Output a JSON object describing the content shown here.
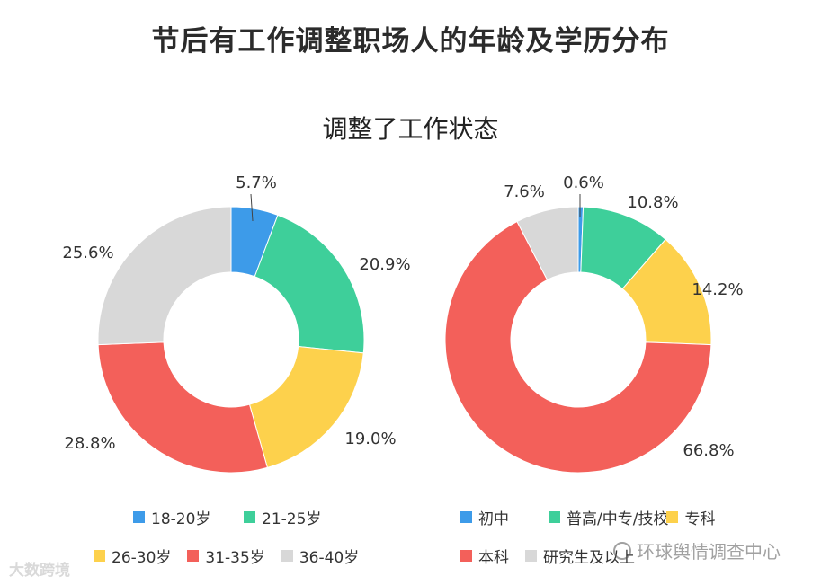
{
  "title": "节后有工作调整职场人的年龄及学历分布",
  "subtitle": "调整了工作状态",
  "chart_data": [
    {
      "type": "pie",
      "name": "age",
      "categories": [
        "18-20岁",
        "21-25岁",
        "26-30岁",
        "31-35岁",
        "36-40岁"
      ],
      "values": [
        5.7,
        20.9,
        19.0,
        28.8,
        25.6
      ],
      "labels": [
        "5.7%",
        "20.9%",
        "19.0%",
        "28.8%",
        "25.6%"
      ],
      "colors": [
        "#3d9be9",
        "#3ecf9a",
        "#fdd14c",
        "#f3605a",
        "#d8d8d8"
      ],
      "legend": "bottom"
    },
    {
      "type": "pie",
      "name": "education",
      "categories": [
        "初中",
        "普高/中专/技校",
        "专科",
        "本科",
        "研究生及以上"
      ],
      "values": [
        0.6,
        10.8,
        14.2,
        66.8,
        7.6
      ],
      "labels": [
        "0.6%",
        "10.8%",
        "14.2%",
        "66.8%",
        "7.6%"
      ],
      "colors": [
        "#3d9be9",
        "#3ecf9a",
        "#fdd14c",
        "#f3605a",
        "#d8d8d8"
      ],
      "legend": "bottom"
    }
  ],
  "legend_left": [
    {
      "label": "18-20岁",
      "color": "#3d9be9"
    },
    {
      "label": "21-25岁",
      "color": "#3ecf9a"
    },
    {
      "label": "26-30岁",
      "color": "#fdd14c"
    },
    {
      "label": "31-35岁",
      "color": "#f3605a"
    },
    {
      "label": "36-40岁",
      "color": "#d8d8d8"
    }
  ],
  "legend_right": [
    {
      "label": "初中",
      "color": "#3d9be9"
    },
    {
      "label": "普高/中专/技校",
      "color": "#3ecf9a"
    },
    {
      "label": "专科",
      "color": "#fdd14c"
    },
    {
      "label": "本科",
      "color": "#f3605a"
    },
    {
      "label": "研究生及以上",
      "color": "#d8d8d8"
    }
  ],
  "watermark_left": "大数跨境",
  "watermark_right": "环球舆情调查中心"
}
